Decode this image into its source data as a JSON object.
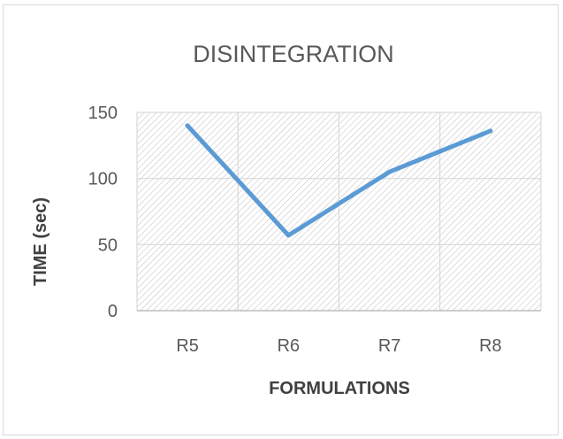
{
  "chart_data": {
    "type": "line",
    "title": "DISINTEGRATION",
    "xlabel": "FORMULATIONS",
    "ylabel": "TIME (sec)",
    "categories": [
      "R5",
      "R6",
      "R7",
      "R8"
    ],
    "series": [
      {
        "values": [
          140,
          57,
          105,
          136
        ]
      }
    ],
    "ylim": [
      0,
      150
    ],
    "yticks": [
      0,
      50,
      100,
      150
    ],
    "grid": true,
    "legend": "none",
    "colors": {
      "line": "#5b9bd5",
      "grid": "#d9d9d9",
      "hatch": "#bfbfbf",
      "text": "#595959"
    }
  }
}
